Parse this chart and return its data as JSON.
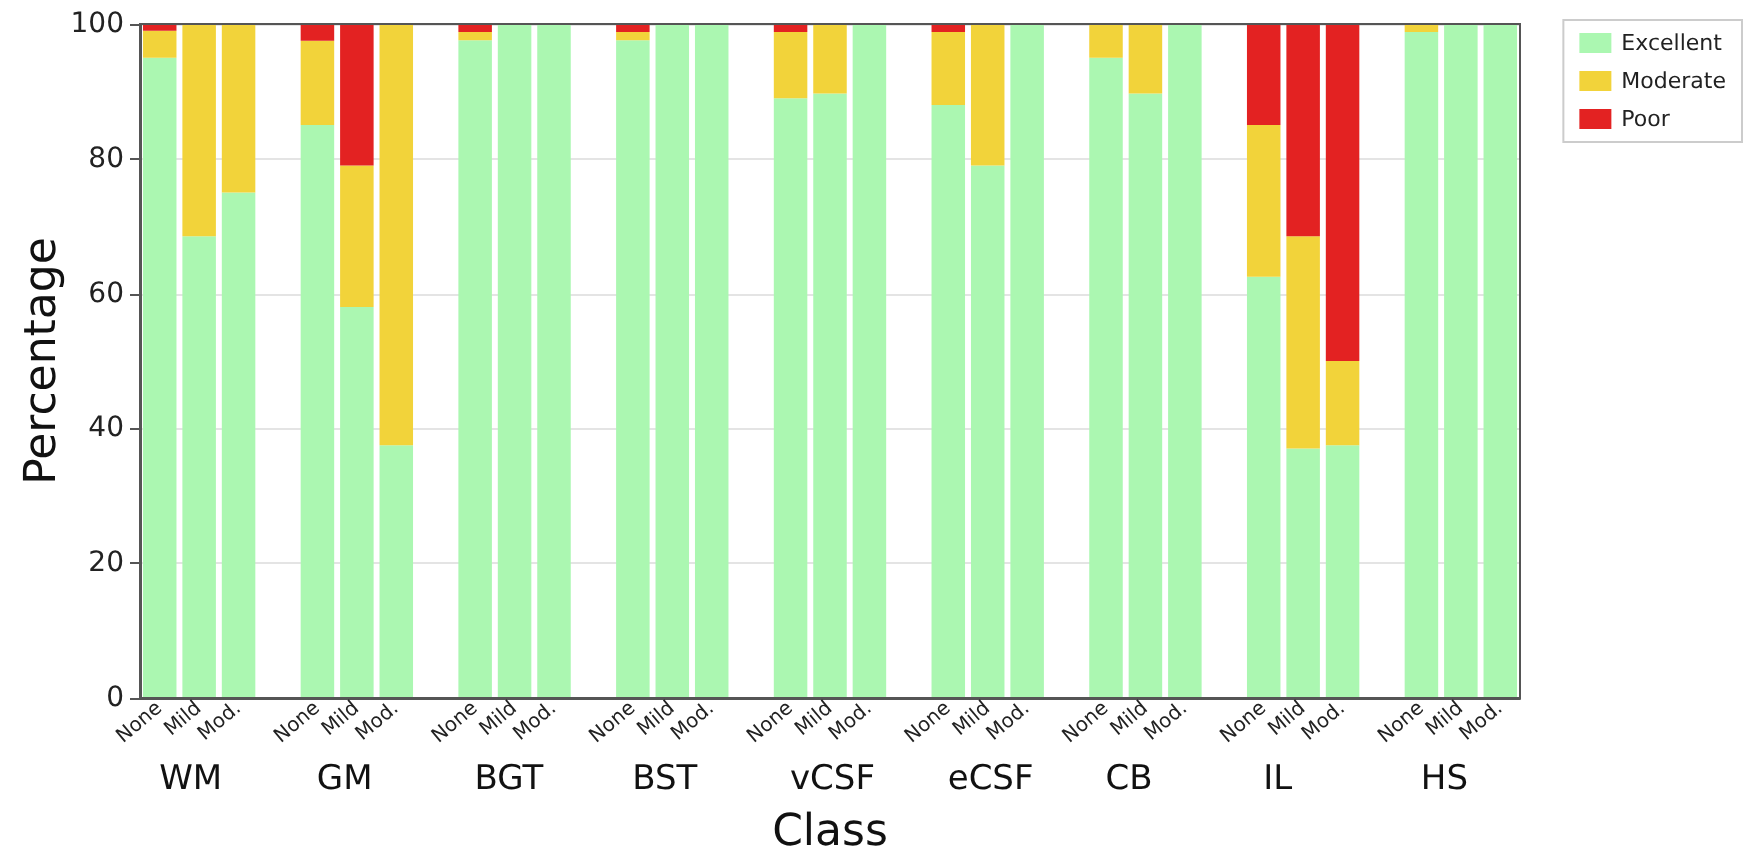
{
  "chart_data": {
    "type": "bar",
    "stacked": true,
    "xlabel": "Class",
    "ylabel": "Percentage",
    "categories": [
      "None",
      "Mild",
      "Mod.",
      null,
      "None",
      "Mild",
      "Mod.",
      null,
      "None",
      "Mild",
      "Mod.",
      null,
      "None",
      "Mild",
      "Mod.",
      null,
      "None",
      "Mild",
      "Mod.",
      null,
      "None",
      "Mild",
      "Mod.",
      null,
      "None",
      "Mild",
      "Mod.",
      null,
      "None",
      "Mild",
      "Mod.",
      null,
      "None",
      "Mild",
      "Mod."
    ],
    "series": [
      {
        "name": "Excellent",
        "color": "#abf7b1",
        "values": [
          95,
          68.5,
          75,
          null,
          85,
          58,
          37.5,
          null,
          97.6,
          100,
          100,
          null,
          97.6,
          100,
          100,
          null,
          89,
          89.7,
          100,
          null,
          88,
          79,
          100,
          null,
          95,
          89.7,
          100,
          null,
          62.5,
          37,
          37.5,
          null,
          98.8,
          100,
          100
        ]
      },
      {
        "name": "Moderate",
        "color": "#f2d33a",
        "values": [
          4,
          31.5,
          25,
          null,
          12.5,
          21,
          62.5,
          null,
          1.2,
          0,
          0,
          null,
          1.2,
          0,
          0,
          null,
          9.8,
          10.3,
          0,
          null,
          10.8,
          21,
          0,
          null,
          5,
          10.3,
          0,
          null,
          22.5,
          31.5,
          12.5,
          null,
          1.2,
          0,
          0
        ]
      },
      {
        "name": "Poor",
        "color": "#e32222",
        "values": [
          1,
          0,
          0,
          null,
          2.5,
          21,
          0,
          null,
          1.2,
          0,
          0,
          null,
          1.2,
          0,
          0,
          null,
          1.2,
          0,
          0,
          null,
          1.2,
          0,
          0,
          null,
          0,
          0,
          0,
          null,
          15,
          31.5,
          50,
          null,
          0,
          0,
          0
        ]
      }
    ],
    "annotations": [
      "WM",
      "GM",
      "BGT",
      "BST",
      "vCSF",
      "eCSF",
      "CB",
      "IL",
      "HS"
    ],
    "ylim": [
      0,
      100
    ],
    "yticks": [
      0,
      20,
      40,
      60,
      80,
      100
    ],
    "grid": "y",
    "legend": "top right"
  }
}
